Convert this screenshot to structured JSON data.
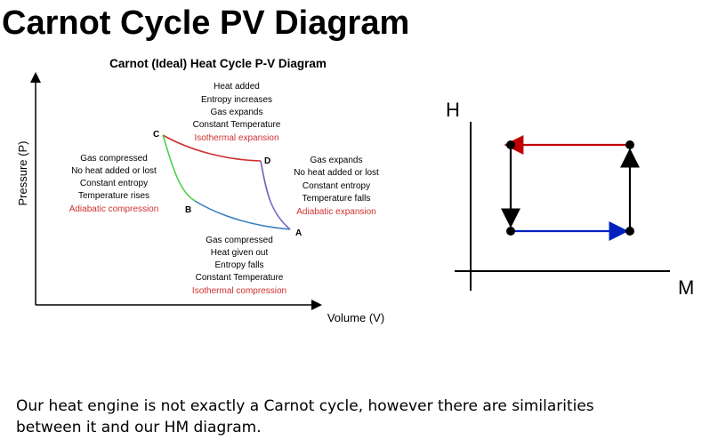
{
  "slide": {
    "title": "Carnot Cycle PV Diagram",
    "caption_line1": "Our heat engine is not exactly a Carnot cycle, however there are similarities",
    "caption_line2": "between it and our HM diagram."
  },
  "pv_diagram": {
    "title": "Carnot (Ideal) Heat Cycle P-V Diagram",
    "y_axis_label": "Pressure (P)",
    "x_axis_label": "Volume (V)",
    "points": {
      "A": "A",
      "B": "B",
      "C": "C",
      "D": "D"
    },
    "top_note": [
      "Heat added",
      "Entropy increases",
      "Gas expands",
      "Constant Temperature"
    ],
    "top_process": "Isothermal expansion",
    "left_note": [
      "Gas compressed",
      "No heat added or lost",
      "Constant entropy",
      "Temperature rises"
    ],
    "left_process": "Adiabatic  compression",
    "right_note": [
      "Gas expands",
      "No heat added or lost",
      "Constant entropy",
      "Temperature falls"
    ],
    "right_process": "Adiabatic expansion",
    "bottom_note": [
      "Gas compressed",
      "Heat given out",
      "Entropy falls",
      "Constant Temperature"
    ],
    "bottom_process": "Isothermal compression",
    "colors": {
      "isothermal_expansion": "#d03030",
      "adiabatic_expansion": "#7b5fc0",
      "isothermal_compression": "#3a7fc2",
      "adiabatic_compression": "#4cd04c",
      "process_text": "#d03030"
    }
  },
  "hm_diagram": {
    "y_axis_label": "H",
    "x_axis_label": "M",
    "colors": {
      "top_arrow": "#c00000",
      "bottom_arrow": "#0020c0",
      "side_arrows": "#000000"
    }
  }
}
